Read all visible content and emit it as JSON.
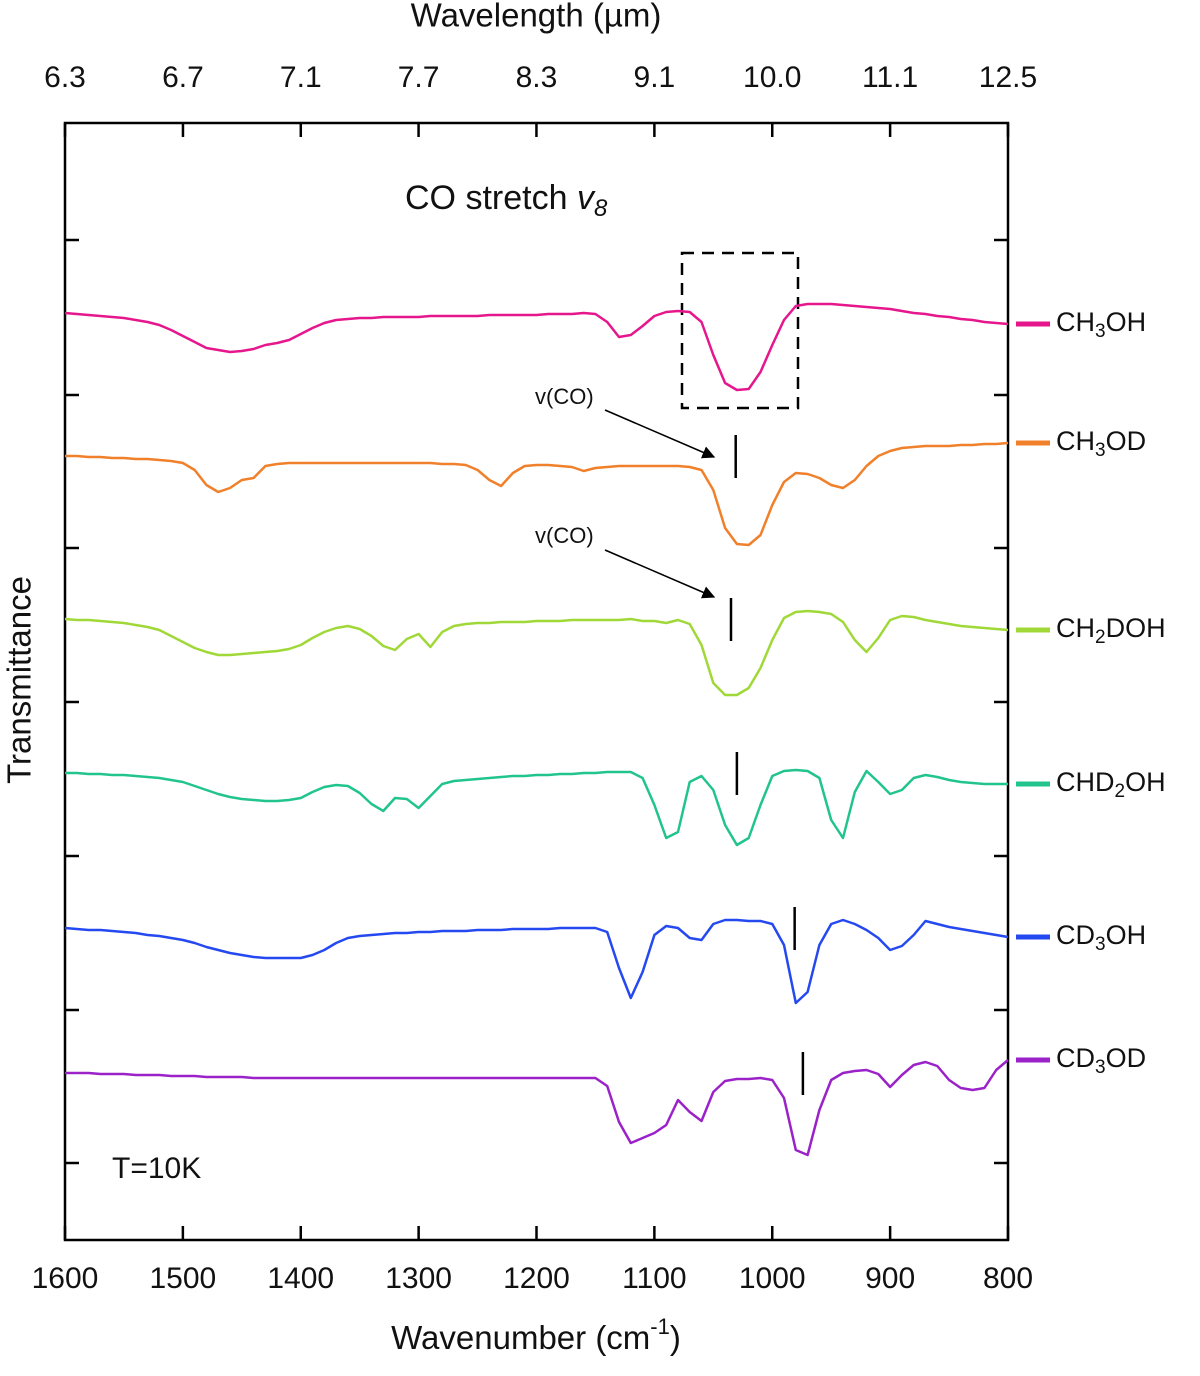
{
  "chart_data": {
    "type": "line",
    "xlabel": "Wavenumber (cm-1)",
    "x2label": "Wavelength (µm)",
    "ylabel": "Transmittance",
    "annotation": {
      "text": "CO stretch ",
      "symbol": "v",
      "subscript": "8"
    },
    "band_label": "v(CO)",
    "temperature": "T=10K",
    "xlim": [
      1600,
      800
    ],
    "xticks": [
      1600,
      1500,
      1400,
      1300,
      1200,
      1100,
      1000,
      900,
      800
    ],
    "x2scale": "reciprocal",
    "x2ticks": [
      {
        "value": 6.25,
        "label": "6.3"
      },
      {
        "value": 6.667,
        "label": "6.7"
      },
      {
        "value": 7.143,
        "label": "7.1"
      },
      {
        "value": 7.692,
        "label": "7.7"
      },
      {
        "value": 8.333,
        "label": "8.3"
      },
      {
        "value": 9.091,
        "label": "9.1"
      },
      {
        "value": 10,
        "label": "10.0"
      },
      {
        "value": 11.111,
        "label": "11.1"
      },
      12.5
    ],
    "ylim": [
      0,
      1117
    ],
    "yticks": [
      77,
      230,
      384,
      538,
      692,
      845,
      1000
    ],
    "ytick_labels": false,
    "legend": "right",
    "x": [
      1600,
      1590,
      1580,
      1570,
      1560,
      1550,
      1540,
      1530,
      1520,
      1510,
      1500,
      1490,
      1480,
      1470,
      1460,
      1450,
      1440,
      1430,
      1420,
      1410,
      1400,
      1390,
      1380,
      1370,
      1360,
      1350,
      1340,
      1330,
      1320,
      1310,
      1300,
      1290,
      1280,
      1270,
      1260,
      1250,
      1240,
      1230,
      1220,
      1210,
      1200,
      1190,
      1180,
      1170,
      1160,
      1150,
      1140,
      1130,
      1120,
      1110,
      1100,
      1090,
      1080,
      1070,
      1060,
      1050,
      1040,
      1030,
      1020,
      1010,
      1000,
      990,
      980,
      970,
      960,
      950,
      940,
      930,
      920,
      910,
      900,
      890,
      880,
      870,
      860,
      850,
      840,
      830,
      820,
      810,
      800
    ],
    "series": [
      {
        "name": "CH3OH",
        "color": "#e6168c",
        "values": [
          927,
          926,
          925,
          924,
          923,
          922,
          920,
          918,
          915,
          910,
          904,
          898,
          892,
          890,
          888,
          889,
          891,
          895,
          897,
          900,
          906,
          912,
          917,
          920,
          921,
          922,
          922,
          923,
          923,
          923,
          923,
          924,
          924,
          924,
          924,
          924,
          925,
          925,
          925,
          925,
          925,
          926,
          926,
          926,
          927,
          926,
          918,
          903,
          905,
          914,
          924,
          928,
          929,
          928,
          918,
          885,
          857,
          850,
          851,
          868,
          895,
          920,
          934,
          936,
          936,
          936,
          935,
          934,
          933,
          932,
          931,
          929,
          927,
          926,
          924,
          923,
          921,
          920,
          918,
          917,
          916
        ]
      },
      {
        "name": "CH3OD",
        "color": "#f0802a",
        "marker": 1031,
        "values": [
          784,
          784,
          783,
          783,
          782,
          782,
          781,
          781,
          780,
          779,
          777,
          770,
          755,
          748,
          752,
          760,
          762,
          774,
          776,
          777,
          777,
          777,
          777,
          777,
          777,
          777,
          777,
          777,
          777,
          777,
          777,
          777,
          776,
          776,
          775,
          770,
          760,
          754,
          767,
          774,
          775,
          775,
          774,
          773,
          769,
          772,
          773,
          774,
          774,
          774,
          774,
          774,
          774,
          773,
          770,
          750,
          712,
          696,
          695,
          705,
          735,
          758,
          767,
          766,
          762,
          755,
          752,
          760,
          774,
          784,
          789,
          792,
          793,
          794,
          794,
          794,
          795,
          795,
          796,
          796,
          797
        ]
      },
      {
        "name": "CH2DOH",
        "color": "#a0d838",
        "marker": 1035,
        "values": [
          621,
          620,
          620,
          619,
          618,
          617,
          615,
          613,
          610,
          604,
          598,
          592,
          588,
          585,
          585,
          586,
          587,
          588,
          589,
          591,
          595,
          602,
          608,
          612,
          614,
          611,
          604,
          594,
          590,
          601,
          606,
          593,
          608,
          614,
          616,
          617,
          617,
          618,
          618,
          618,
          619,
          619,
          619,
          620,
          620,
          620,
          620,
          620,
          621,
          619,
          619,
          617,
          620,
          616,
          595,
          557,
          545,
          545,
          552,
          572,
          600,
          622,
          628,
          629,
          628,
          626,
          618,
          600,
          588,
          602,
          620,
          624,
          623,
          620,
          618,
          616,
          614,
          613,
          612,
          611,
          610
        ]
      },
      {
        "name": "CHD2OH",
        "color": "#22c48e",
        "marker": 1030,
        "values": [
          467,
          467,
          466,
          466,
          465,
          465,
          464,
          463,
          462,
          460,
          458,
          454,
          450,
          446,
          443,
          441,
          440,
          439,
          439,
          440,
          442,
          448,
          453,
          455,
          454,
          447,
          436,
          429,
          442,
          441,
          432,
          444,
          456,
          459,
          460,
          461,
          462,
          463,
          464,
          464,
          465,
          465,
          466,
          466,
          467,
          467,
          468,
          468,
          468,
          462,
          435,
          402,
          408,
          458,
          464,
          450,
          415,
          395,
          402,
          435,
          464,
          469,
          470,
          469,
          462,
          420,
          402,
          448,
          469,
          458,
          446,
          450,
          462,
          465,
          463,
          460,
          458,
          457,
          456,
          456,
          456
        ]
      },
      {
        "name": "CD3OH",
        "color": "#2549f0",
        "marker": 981,
        "values": [
          312,
          311,
          310,
          310,
          309,
          308,
          307,
          305,
          304,
          302,
          300,
          297,
          293,
          290,
          287,
          285,
          283,
          282,
          282,
          282,
          282,
          285,
          290,
          297,
          302,
          304,
          305,
          306,
          307,
          307,
          308,
          308,
          309,
          309,
          309,
          310,
          310,
          310,
          311,
          311,
          311,
          311,
          312,
          312,
          312,
          312,
          308,
          272,
          242,
          268,
          305,
          314,
          312,
          302,
          300,
          316,
          320,
          320,
          319,
          319,
          316,
          295,
          237,
          248,
          295,
          316,
          320,
          316,
          310,
          302,
          290,
          294,
          305,
          319,
          316,
          313,
          311,
          309,
          307,
          305,
          303
        ]
      },
      {
        "name": "CD3OD",
        "color": "#9a22c8",
        "marker": 974,
        "values": [
          167,
          167,
          167,
          166,
          166,
          166,
          165,
          165,
          165,
          164,
          164,
          164,
          163,
          163,
          163,
          163,
          162,
          162,
          162,
          162,
          162,
          162,
          162,
          162,
          162,
          162,
          162,
          162,
          162,
          162,
          162,
          162,
          162,
          162,
          162,
          162,
          162,
          162,
          162,
          162,
          162,
          162,
          162,
          162,
          162,
          162,
          154,
          118,
          97,
          102,
          107,
          115,
          140,
          128,
          119,
          148,
          159,
          161,
          161,
          162,
          160,
          142,
          90,
          85,
          130,
          160,
          167,
          169,
          170,
          166,
          153,
          165,
          175,
          178,
          174,
          160,
          152,
          150,
          152,
          170,
          180
        ]
      }
    ]
  }
}
